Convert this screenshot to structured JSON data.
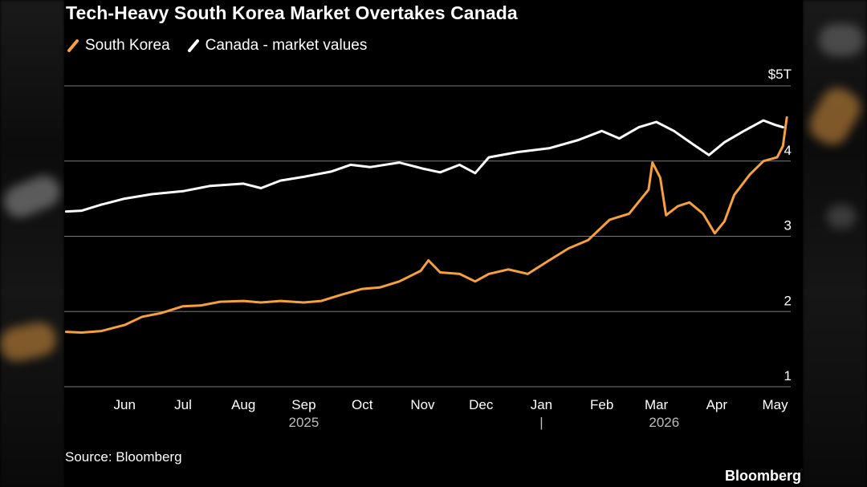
{
  "colors": {
    "south_korea": "#f7a03c",
    "canada": "#ffffff",
    "grid": "#7a7a7a",
    "background": "#000000"
  },
  "header": {
    "title": "Tech-Heavy South Korea Market Overtakes Canada"
  },
  "legend": {
    "south_korea_label": "South Korea",
    "canada_label": "Canada - market values"
  },
  "footer": {
    "source": "Source: Bloomberg",
    "brand": "Bloomberg"
  },
  "chart_data": {
    "type": "line",
    "title": "Tech-Heavy South Korea Market Overtakes Canada",
    "xlabel": "",
    "ylabel": "",
    "y_unit_prefix": "$",
    "y_unit_suffix": "T",
    "ylim": [
      1,
      5
    ],
    "yticks": [
      1,
      2,
      3,
      4,
      5
    ],
    "grid": true,
    "legend_position": "top-left",
    "x_range": [
      "2025-05-01",
      "2026-05-09"
    ],
    "month_ticks": [
      {
        "label": "Jun",
        "date": "2025-06-01"
      },
      {
        "label": "Jul",
        "date": "2025-07-01"
      },
      {
        "label": "Aug",
        "date": "2025-08-01"
      },
      {
        "label": "Sep",
        "date": "2025-09-01"
      },
      {
        "label": "Oct",
        "date": "2025-10-01"
      },
      {
        "label": "Nov",
        "date": "2025-11-01"
      },
      {
        "label": "Dec",
        "date": "2025-12-01"
      },
      {
        "label": "Jan",
        "date": "2026-01-01"
      },
      {
        "label": "Feb",
        "date": "2026-02-01"
      },
      {
        "label": "Mar",
        "date": "2026-03-01"
      },
      {
        "label": "Apr",
        "date": "2026-04-01"
      },
      {
        "label": "May",
        "date": "2026-05-01"
      }
    ],
    "year_labels": [
      {
        "label": "2025",
        "date": "2025-09-01"
      },
      {
        "label": "2026",
        "date": "2026-03-05"
      }
    ],
    "year_divider": {
      "label": "|",
      "date": "2026-01-01"
    },
    "series": [
      {
        "name": "South Korea",
        "color": "#f7a03c",
        "points": [
          [
            "2025-05-02",
            1.73
          ],
          [
            "2025-05-10",
            1.72
          ],
          [
            "2025-05-20",
            1.74
          ],
          [
            "2025-06-01",
            1.82
          ],
          [
            "2025-06-10",
            1.93
          ],
          [
            "2025-06-20",
            1.98
          ],
          [
            "2025-07-01",
            2.07
          ],
          [
            "2025-07-10",
            2.08
          ],
          [
            "2025-07-20",
            2.13
          ],
          [
            "2025-08-01",
            2.14
          ],
          [
            "2025-08-10",
            2.12
          ],
          [
            "2025-08-20",
            2.14
          ],
          [
            "2025-09-01",
            2.12
          ],
          [
            "2025-09-10",
            2.14
          ],
          [
            "2025-09-20",
            2.22
          ],
          [
            "2025-10-01",
            2.3
          ],
          [
            "2025-10-10",
            2.32
          ],
          [
            "2025-10-20",
            2.4
          ],
          [
            "2025-10-31",
            2.54
          ],
          [
            "2025-11-04",
            2.68
          ],
          [
            "2025-11-10",
            2.52
          ],
          [
            "2025-11-20",
            2.5
          ],
          [
            "2025-11-28",
            2.4
          ],
          [
            "2025-12-05",
            2.5
          ],
          [
            "2025-12-15",
            2.56
          ],
          [
            "2025-12-25",
            2.5
          ],
          [
            "2026-01-05",
            2.68
          ],
          [
            "2026-01-15",
            2.84
          ],
          [
            "2026-01-25",
            2.95
          ],
          [
            "2026-02-05",
            3.22
          ],
          [
            "2026-02-15",
            3.3
          ],
          [
            "2026-02-25",
            3.62
          ],
          [
            "2026-02-27",
            3.98
          ],
          [
            "2026-03-03",
            3.78
          ],
          [
            "2026-03-06",
            3.28
          ],
          [
            "2026-03-12",
            3.4
          ],
          [
            "2026-03-18",
            3.45
          ],
          [
            "2026-03-25",
            3.3
          ],
          [
            "2026-03-31",
            3.04
          ],
          [
            "2026-04-05",
            3.2
          ],
          [
            "2026-04-10",
            3.55
          ],
          [
            "2026-04-18",
            3.82
          ],
          [
            "2026-04-25",
            4.0
          ],
          [
            "2026-05-02",
            4.05
          ],
          [
            "2026-05-05",
            4.2
          ],
          [
            "2026-05-07",
            4.58
          ]
        ]
      },
      {
        "name": "Canada",
        "color": "#ffffff",
        "points": [
          [
            "2025-05-02",
            3.33
          ],
          [
            "2025-05-10",
            3.34
          ],
          [
            "2025-05-20",
            3.42
          ],
          [
            "2025-06-01",
            3.5
          ],
          [
            "2025-06-15",
            3.56
          ],
          [
            "2025-07-01",
            3.6
          ],
          [
            "2025-07-15",
            3.67
          ],
          [
            "2025-08-01",
            3.7
          ],
          [
            "2025-08-10",
            3.64
          ],
          [
            "2025-08-20",
            3.74
          ],
          [
            "2025-09-01",
            3.79
          ],
          [
            "2025-09-15",
            3.86
          ],
          [
            "2025-09-25",
            3.95
          ],
          [
            "2025-10-05",
            3.92
          ],
          [
            "2025-10-20",
            3.98
          ],
          [
            "2025-11-01",
            3.9
          ],
          [
            "2025-11-10",
            3.85
          ],
          [
            "2025-11-20",
            3.95
          ],
          [
            "2025-11-28",
            3.84
          ],
          [
            "2025-12-05",
            4.05
          ],
          [
            "2025-12-20",
            4.12
          ],
          [
            "2026-01-05",
            4.17
          ],
          [
            "2026-01-20",
            4.28
          ],
          [
            "2026-02-01",
            4.4
          ],
          [
            "2026-02-10",
            4.3
          ],
          [
            "2026-02-20",
            4.45
          ],
          [
            "2026-03-01",
            4.52
          ],
          [
            "2026-03-10",
            4.4
          ],
          [
            "2026-03-20",
            4.22
          ],
          [
            "2026-03-28",
            4.08
          ],
          [
            "2026-04-05",
            4.25
          ],
          [
            "2026-04-15",
            4.4
          ],
          [
            "2026-04-25",
            4.54
          ],
          [
            "2026-05-01",
            4.48
          ],
          [
            "2026-05-05",
            4.45
          ]
        ]
      }
    ]
  }
}
